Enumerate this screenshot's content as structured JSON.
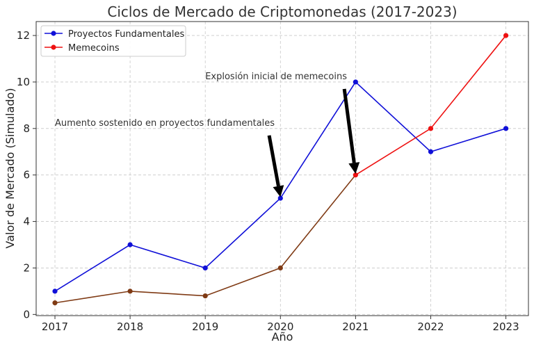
{
  "chart_data": {
    "type": "line",
    "title": "Ciclos de Mercado de Criptomonedas (2017-2023)",
    "xlabel": "Año",
    "ylabel": "Valor de Mercado (Simulado)",
    "x": [
      2017,
      2018,
      2019,
      2020,
      2021,
      2022,
      2023
    ],
    "x_tick_labels": [
      "2017",
      "2018",
      "2019",
      "2020",
      "2021",
      "2022",
      "2023"
    ],
    "ylim": [
      0,
      12.6
    ],
    "y_ticks": [
      0,
      2,
      4,
      6,
      8,
      10,
      12
    ],
    "y_tick_labels": [
      "0",
      "2",
      "4",
      "6",
      "8",
      "10",
      "12"
    ],
    "grid": true,
    "legend_position": "top-left",
    "series": [
      {
        "name": "Proyectos Fundamentales",
        "color": "#1010d8",
        "values": [
          1,
          3,
          2,
          5,
          10,
          7,
          8
        ]
      },
      {
        "name": "Memecoins",
        "color": "#ee1111",
        "values": [
          0.5,
          1,
          0.8,
          2,
          6,
          8,
          12
        ]
      }
    ],
    "overlap_color": "#7f3a14",
    "annotations": [
      {
        "text": "Aumento sostenido en proyectos fundamentales",
        "text_at": [
          2017,
          8
        ],
        "arrow_from": [
          2019.85,
          7.7
        ],
        "arrow_to": [
          2020,
          5.05
        ]
      },
      {
        "text": "Explosión inicial de memecoins",
        "text_at": [
          2019,
          10
        ],
        "arrow_from": [
          2020.85,
          9.7
        ],
        "arrow_to": [
          2021,
          6.05
        ]
      }
    ]
  }
}
